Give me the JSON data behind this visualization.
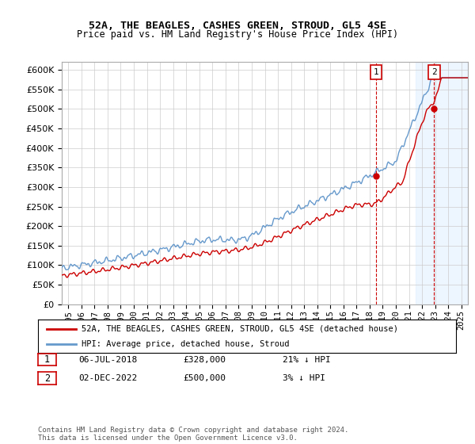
{
  "title1": "52A, THE BEAGLES, CASHES GREEN, STROUD, GL5 4SE",
  "title2": "Price paid vs. HM Land Registry's House Price Index (HPI)",
  "legend_line1": "52A, THE BEAGLES, CASHES GREEN, STROUD, GL5 4SE (detached house)",
  "legend_line2": "HPI: Average price, detached house, Stroud",
  "footer": "Contains HM Land Registry data © Crown copyright and database right 2024.\nThis data is licensed under the Open Government Licence v3.0.",
  "annotation1": {
    "label": "1",
    "date": "06-JUL-2018",
    "price": "£328,000",
    "pct": "21% ↓ HPI"
  },
  "annotation2": {
    "label": "2",
    "date": "02-DEC-2022",
    "price": "£500,000",
    "pct": "3% ↓ HPI"
  },
  "hpi_color": "#6699cc",
  "price_color": "#cc0000",
  "background_color": "#ffffff",
  "grid_color": "#cccccc",
  "ylim": [
    0,
    620000
  ],
  "yticks": [
    0,
    50000,
    100000,
    150000,
    200000,
    250000,
    300000,
    350000,
    400000,
    450000,
    500000,
    550000,
    600000
  ],
  "xlim_start": 1994.5,
  "xlim_end": 2025.5,
  "purchase1_x": 2018.5,
  "purchase1_y": 328000,
  "purchase2_x": 2022.917,
  "purchase2_y": 500000,
  "shade_start": 2021.5
}
